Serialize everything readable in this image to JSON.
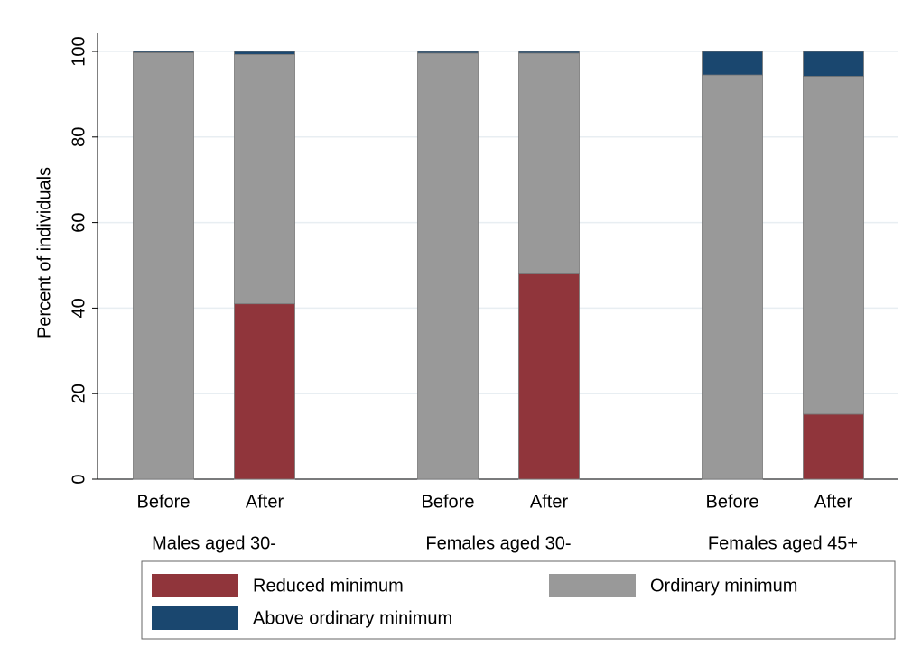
{
  "chart_data": {
    "type": "stacked-bar",
    "ylabel": "Percent of individuals",
    "groups": [
      {
        "name": "Males aged 30-",
        "categories": [
          "Before",
          "After"
        ]
      },
      {
        "name": "Females aged 30-",
        "categories": [
          "Before",
          "After"
        ]
      },
      {
        "name": "Females aged 45+",
        "categories": [
          "Before",
          "After"
        ]
      }
    ],
    "series": [
      {
        "name": "Reduced minimum",
        "color": "#90353b",
        "values": [
          0,
          41,
          0,
          48,
          0,
          15.2
        ]
      },
      {
        "name": "Ordinary minimum",
        "color": "#999999",
        "values": [
          99.7,
          58.3,
          99.6,
          51.6,
          94.5,
          79
        ]
      },
      {
        "name": "Above ordinary minimum",
        "color": "#1a476f",
        "values": [
          0.3,
          0.7,
          0.4,
          0.4,
          5.5,
          5.8
        ]
      }
    ],
    "ylim": [
      0,
      100
    ],
    "yticks": [
      0,
      20,
      40,
      60,
      80,
      100
    ],
    "grid": true,
    "legend": "bottom"
  }
}
